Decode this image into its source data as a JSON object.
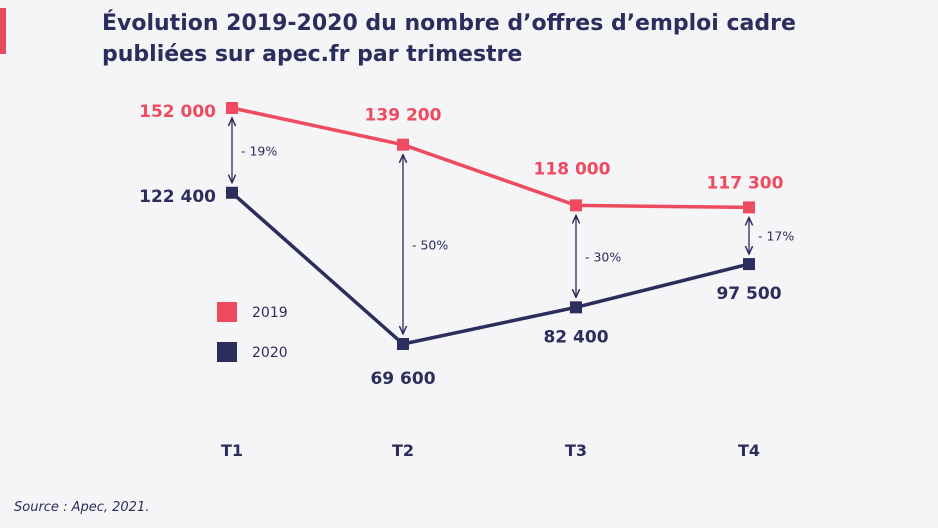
{
  "title_line1": "Évolution 2019-2020 du nombre d’offres d’emploi cadre",
  "title_line2": "publiées sur apec.fr par trimestre",
  "source": "Source : Apec, 2021.",
  "colors": {
    "accent": "#e84a5f",
    "navy": "#2b2d5c"
  },
  "chart_data": {
    "type": "line",
    "categories": [
      "T1",
      "T2",
      "T3",
      "T4"
    ],
    "series": [
      {
        "name": "2019",
        "color": "#ee4a60",
        "values": [
          152000,
          139200,
          118000,
          117300
        ],
        "labels": [
          "152 000",
          "139 200",
          "118 000",
          "117 300"
        ]
      },
      {
        "name": "2020",
        "color": "#2b2d5c",
        "values": [
          122400,
          69600,
          82400,
          97500
        ],
        "labels": [
          "122 400",
          "69 600",
          "82 400",
          "97 500"
        ]
      }
    ],
    "changes": [
      "- 19%",
      "- 50%",
      "- 30%",
      "- 17%"
    ],
    "ylim": [
      55000,
      165000
    ],
    "grid": false,
    "legend_position": "left"
  }
}
